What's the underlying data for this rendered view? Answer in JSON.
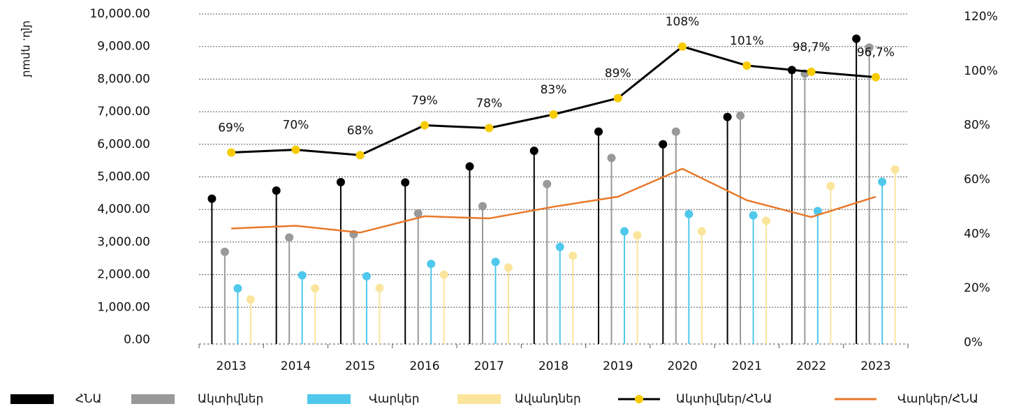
{
  "chart_data": {
    "type": "lollipop",
    "y_label": "մլն. դրամ",
    "categories": [
      "2013",
      "2014",
      "2015",
      "2016",
      "2017",
      "2018",
      "2019",
      "2020",
      "2021",
      "2022",
      "2023"
    ],
    "series": [
      {
        "name": "ՀՆԱ",
        "color": "#000000",
        "values": [
          4330,
          4580,
          4840,
          4830,
          5320,
          5800,
          6390,
          6000,
          6840,
          8280,
          9240
        ]
      },
      {
        "name": "Ակտիվներ",
        "color": "#999999",
        "values": [
          2700,
          3140,
          3240,
          3880,
          4100,
          4780,
          5580,
          6390,
          6880,
          8170,
          8970
        ]
      },
      {
        "name": "Վարկեր",
        "color": "#4fc8ec",
        "values": [
          1580,
          1980,
          1950,
          2330,
          2390,
          2850,
          3330,
          3860,
          3820,
          3950,
          4850
        ]
      },
      {
        "name": "Ավանդներ",
        "color": "#fbe59c",
        "values": [
          1240,
          1580,
          1590,
          2000,
          2220,
          2580,
          3210,
          3330,
          3650,
          4720,
          5230
        ]
      },
      {
        "name": "Ակտիվներ/ՀՆԱ",
        "color": "#000000",
        "marker_color": "#f7cb00",
        "axis": "y2",
        "values": [
          69,
          70,
          68,
          79,
          78,
          83,
          89,
          108,
          101,
          98.7,
          96.7
        ],
        "value_labels": [
          "69%",
          "70%",
          "68%",
          "79%",
          "78%",
          "83%",
          "89%",
          "108%",
          "101%",
          "98,7%",
          "96,7%"
        ]
      },
      {
        "name": "Վարկեր/ՀՆԱ",
        "color": "#e8782a",
        "axis": "y2",
        "values": [
          41,
          42,
          39.5,
          45.5,
          44.7,
          49,
          52.7,
          63,
          51.4,
          45.2,
          52.7
        ]
      }
    ],
    "ylim": [
      0,
      10000
    ],
    "yticks": [
      {
        "value": 0,
        "label": "0.00"
      },
      {
        "value": 1000,
        "label": "1,000.00"
      },
      {
        "value": 2000,
        "label": "2,000.00"
      },
      {
        "value": 3000,
        "label": "3,000.00"
      },
      {
        "value": 4000,
        "label": "4,000.00"
      },
      {
        "value": 5000,
        "label": "5,000.00"
      },
      {
        "value": 6000,
        "label": "6,000.00"
      },
      {
        "value": 7000,
        "label": "7,000.00"
      },
      {
        "value": 8000,
        "label": "8,000.00"
      },
      {
        "value": 9000,
        "label": "9,000.00"
      },
      {
        "value": 10000,
        "label": "10,000.00"
      }
    ],
    "y2lim": [
      0,
      120
    ],
    "y2ticks": [
      {
        "value": 0,
        "label": "0%"
      },
      {
        "value": 20,
        "label": "20%"
      },
      {
        "value": 40,
        "label": "40%"
      },
      {
        "value": 60,
        "label": "60%"
      },
      {
        "value": 80,
        "label": "80%"
      },
      {
        "value": 100,
        "label": "100%"
      },
      {
        "value": 120,
        "label": "120%"
      }
    ],
    "grid": true
  }
}
